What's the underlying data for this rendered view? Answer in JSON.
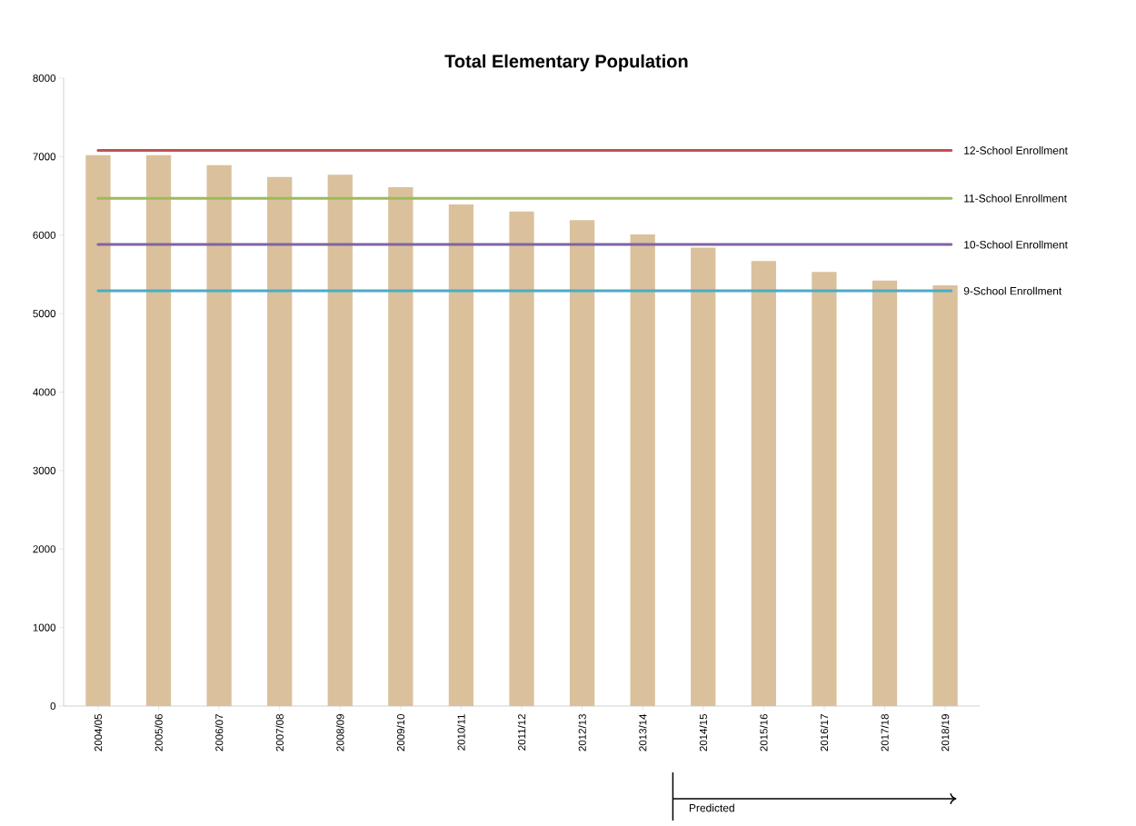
{
  "chart_data": {
    "type": "bar",
    "title": "Total Elementary Population",
    "categories": [
      "2004/05",
      "2005/06",
      "2006/07",
      "2007/08",
      "2008/09",
      "2009/10",
      "2010/11",
      "2011/12",
      "2012/13",
      "2013/14",
      "2014/15",
      "2015/16",
      "2016/17",
      "2017/18",
      "2018/19"
    ],
    "values": [
      7020,
      7020,
      6890,
      6740,
      6770,
      6610,
      6390,
      6300,
      6190,
      6010,
      5840,
      5670,
      5530,
      5420,
      5360
    ],
    "color": "#dac19c",
    "ylim": [
      0,
      8000
    ],
    "yticks": [
      0,
      1000,
      2000,
      3000,
      4000,
      5000,
      6000,
      7000,
      8000
    ],
    "ref_lines": [
      {
        "axis": "y",
        "value": 7080,
        "label": "12-School Enrollment",
        "color": "#c0504d"
      },
      {
        "axis": "y",
        "value": 6470,
        "label": "11-School Enrollment",
        "color": "#9bbb59"
      },
      {
        "axis": "y",
        "value": 5880,
        "label": "10-School Enrollment",
        "color": "#8064a2"
      },
      {
        "axis": "y",
        "value": 5290,
        "label": "9-School Enrollment",
        "color": "#4bacc6"
      }
    ],
    "annotations": [
      "Predicted"
    ]
  }
}
